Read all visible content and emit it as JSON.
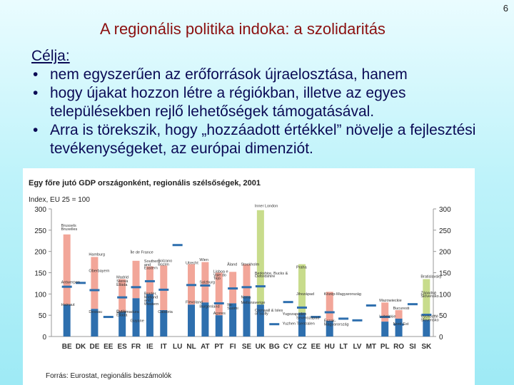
{
  "page_number": "6",
  "title": "A regionális politika indoka: a szolidaritás",
  "body": {
    "heading": "Célja:",
    "bullets": [
      "nem egyszerűen az erőforrások újraelosztása, hanem",
      "hogy újakat hozzon létre a régiókban, illetve az egyes településekben rejlő lehetőségek támogatásával.",
      "Arra is törekszik, hogy „hozzáadott értékkel” növelje a fejlesztési tevékenységeket, az európai dimenziót."
    ]
  },
  "chart_data": {
    "type": "bar",
    "title": "Egy főre jutó GDP országonként, regionális szélsőségek, 2001",
    "ylabel": "Index, EU 25 = 100",
    "ylim": [
      0,
      300
    ],
    "yticks": [
      0,
      50,
      100,
      150,
      200,
      250,
      300
    ],
    "source": "Forrás: Eurostat, regionális beszámolók",
    "colors": {
      "max": "#f2a699",
      "min": "#2e6fae",
      "single": "#8fb0d0",
      "highlight": "#c8dc8c",
      "national": "#2e6fae"
    },
    "categories": [
      "BE",
      "DK",
      "DE",
      "EE",
      "ES",
      "FR",
      "IE",
      "IT",
      "LU",
      "NL",
      "AT",
      "PT",
      "FI",
      "SE",
      "UK",
      "BG",
      "CY",
      "CZ",
      "EE",
      "HU",
      "LT",
      "LV",
      "MT",
      "PL",
      "RO",
      "SI",
      "SK"
    ],
    "series": [
      {
        "category": "BE",
        "min": 75,
        "max": 240,
        "national": 117
      },
      {
        "category": "DK",
        "min": 0,
        "max": 0,
        "national": 126
      },
      {
        "category": "DE",
        "min": 65,
        "max": 187,
        "national": 109
      },
      {
        "category": "EE",
        "min": 0,
        "max": 0,
        "national": 46
      },
      {
        "category": "ES",
        "min": 58,
        "max": 135,
        "national": 92
      },
      {
        "category": "FR",
        "min": 90,
        "max": 178,
        "national": 116
      },
      {
        "category": "IE",
        "min": 100,
        "max": 165,
        "national": 130
      },
      {
        "category": "IT",
        "min": 62,
        "max": 167,
        "national": 110
      },
      {
        "category": "LU",
        "min": 0,
        "max": 0,
        "national": 215
      },
      {
        "category": "NL",
        "min": 75,
        "max": 170,
        "national": 121
      },
      {
        "category": "AT",
        "min": 80,
        "max": 175,
        "national": 120
      },
      {
        "category": "PT",
        "min": 50,
        "max": 150,
        "national": 78
      },
      {
        "category": "FI",
        "min": 78,
        "max": 152,
        "national": 113
      },
      {
        "category": "SE",
        "min": 95,
        "max": 170,
        "national": 116
      },
      {
        "category": "UK",
        "min": 75,
        "max": 297,
        "national": 118,
        "highlight": true
      },
      {
        "category": "BG",
        "min": 0,
        "max": 0,
        "national": 29
      },
      {
        "category": "CY",
        "min": 0,
        "max": 0,
        "national": 81
      },
      {
        "category": "CZ",
        "min": 56,
        "max": 170,
        "national": 68,
        "highlight": true
      },
      {
        "category": "EE",
        "min": 0,
        "max": 0,
        "national": 46
      },
      {
        "category": "HU",
        "min": 37,
        "max": 105,
        "national": 57
      },
      {
        "category": "LT",
        "min": 0,
        "max": 0,
        "national": 42
      },
      {
        "category": "LV",
        "min": 0,
        "max": 0,
        "national": 38
      },
      {
        "category": "MT",
        "min": 0,
        "max": 0,
        "national": 73
      },
      {
        "category": "PL",
        "min": 35,
        "max": 80,
        "national": 46
      },
      {
        "category": "RO",
        "min": 42,
        "max": 62,
        "national": 28
      },
      {
        "category": "SI",
        "min": 0,
        "max": 0,
        "national": 76
      },
      {
        "category": "SK",
        "min": 39,
        "max": 135,
        "national": 51,
        "highlight": true
      }
    ],
    "annotations": [
      {
        "text": "Brussels",
        "category": "BE",
        "value": 258
      },
      {
        "text": "Bruxelles",
        "category": "BE",
        "value": 250
      },
      {
        "text": "Hainaut",
        "category": "BE",
        "value": 72
      },
      {
        "text": "Antwerpen",
        "category": "BE",
        "value": 125
      },
      {
        "text": "Oberbayern",
        "category": "DE",
        "value": 152
      },
      {
        "text": "Hamburg",
        "category": "DE",
        "value": 190
      },
      {
        "text": "Dessau",
        "category": "DE",
        "value": 55
      },
      {
        "text": "Stereá",
        "category": "ES",
        "value": 127
      },
      {
        "text": "Elláda",
        "category": "ES",
        "value": 119
      },
      {
        "text": "Madrid",
        "category": "ES",
        "value": 137
      },
      {
        "text": "Dytiki",
        "category": "ES",
        "value": 56
      },
      {
        "text": "Ellada",
        "category": "ES",
        "value": 48
      },
      {
        "text": "Extremadura",
        "category": "ES",
        "value": 55
      },
      {
        "text": "Île de France",
        "category": "FR",
        "value": 195
      },
      {
        "text": "Guyane",
        "category": "FR",
        "value": 34
      },
      {
        "text": "Southern",
        "category": "IE",
        "value": 174
      },
      {
        "text": "and",
        "category": "IE",
        "value": 166
      },
      {
        "text": "Eastern",
        "category": "IE",
        "value": 158
      },
      {
        "text": "Border,",
        "category": "IE",
        "value": 98
      },
      {
        "text": "Midland",
        "category": "IE",
        "value": 90
      },
      {
        "text": "and",
        "category": "IE",
        "value": 82
      },
      {
        "text": "Western",
        "category": "IE",
        "value": 74
      },
      {
        "text": "Bolzano",
        "category": "IT",
        "value": 175
      },
      {
        "text": "Bozen",
        "category": "IT",
        "value": 167
      },
      {
        "text": "Calabria",
        "category": "IT",
        "value": 55
      },
      {
        "text": "Wien",
        "category": "AT",
        "value": 178
      },
      {
        "text": "Utrecht",
        "category": "NL",
        "value": 170
      },
      {
        "text": "Flevoland",
        "category": "NL",
        "value": 78
      },
      {
        "text": "Burgenland",
        "category": "AT",
        "value": 68
      },
      {
        "text": "Salzburg",
        "category": "AT",
        "value": 125
      },
      {
        "text": "Lisboa e",
        "category": "PT",
        "value": 150
      },
      {
        "text": "Vale do",
        "category": "PT",
        "value": 142
      },
      {
        "text": "Tejo",
        "category": "PT",
        "value": 134
      },
      {
        "text": "Ita-",
        "category": "FI",
        "value": 72
      },
      {
        "text": "Suomi",
        "category": "FI",
        "value": 64
      },
      {
        "text": "Açores",
        "category": "PT",
        "value": 52
      },
      {
        "text": "Åland",
        "category": "FI",
        "value": 167
      },
      {
        "text": "Stockholm",
        "category": "SE",
        "value": 167
      },
      {
        "text": "Norra",
        "category": "SE",
        "value": 90
      },
      {
        "text": "Mellansverige",
        "category": "SE",
        "value": 77
      },
      {
        "text": "Inner London",
        "category": "UK",
        "value": 304
      },
      {
        "text": "Berkshire, Bucks &",
        "category": "UK",
        "value": 146
      },
      {
        "text": "Oxfordshire",
        "category": "UK",
        "value": 139
      },
      {
        "text": "Cornwall & Isles",
        "category": "UK",
        "value": 59
      },
      {
        "text": "of Scilly",
        "category": "UK",
        "value": 51
      },
      {
        "text": "Yugozapaden",
        "category": "CY",
        "value": 50
      },
      {
        "text": "Yuzhen Tsentralen",
        "category": "CY",
        "value": 28
      },
      {
        "text": "Praha",
        "category": "CZ",
        "value": 160
      },
      {
        "text": "Jihozápad",
        "category": "CZ",
        "value": 97
      },
      {
        "text": "Severozápad",
        "category": "CZ",
        "value": 41
      },
      {
        "text": "Közép-Magyarország",
        "category": "HU",
        "value": 97
      },
      {
        "text": "Észak-",
        "category": "HU",
        "value": 34
      },
      {
        "text": "Magyarország",
        "category": "HU",
        "value": 26
      },
      {
        "text": "Mazowieckie",
        "category": "PL",
        "value": 82
      },
      {
        "text": "Lubelskie",
        "category": "PL",
        "value": 44
      },
      {
        "text": "Bucuresti",
        "category": "RO",
        "value": 64
      },
      {
        "text": "Nord-Est",
        "category": "RO",
        "value": 27
      },
      {
        "text": "Bratislavský",
        "category": "SK",
        "value": 138
      },
      {
        "text": "Západné",
        "category": "SK",
        "value": 100
      },
      {
        "text": "Slovensko",
        "category": "SK",
        "value": 92
      },
      {
        "text": "Východné",
        "category": "SK",
        "value": 44
      },
      {
        "text": "Slovensko",
        "category": "SK",
        "value": 36
      }
    ]
  }
}
